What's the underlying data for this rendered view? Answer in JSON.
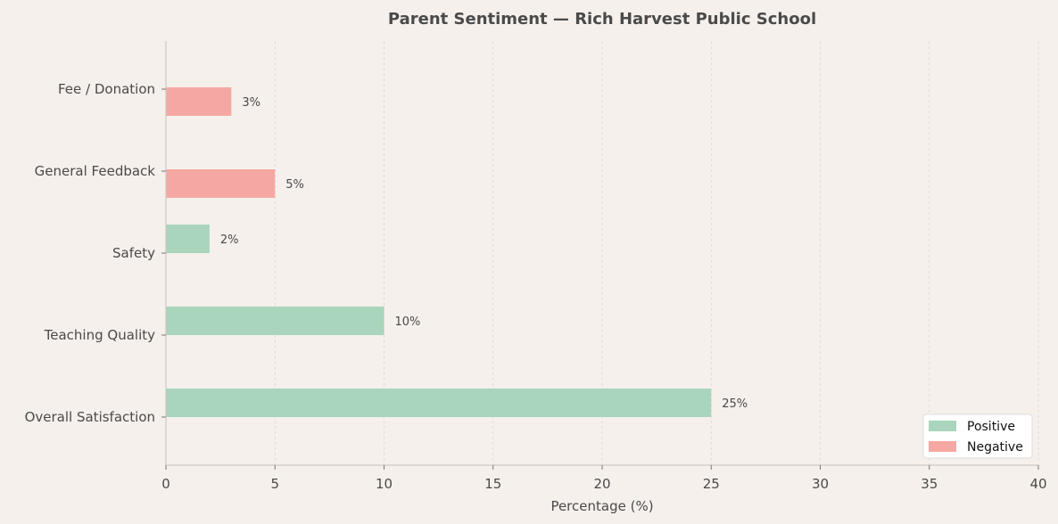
{
  "chart_data": {
    "type": "bar",
    "orientation": "horizontal",
    "title": "Parent Sentiment — Rich Harvest Public School",
    "xlabel": "Percentage (%)",
    "ylabel": "",
    "xlim": [
      0,
      40
    ],
    "xticks": [
      0,
      5,
      10,
      15,
      20,
      25,
      30,
      35,
      40
    ],
    "categories": [
      "Overall Satisfaction",
      "Teaching Quality",
      "Safety",
      "General Feedback",
      "Fee / Donation"
    ],
    "series": [
      {
        "name": "Positive",
        "color": "#a8d5bb",
        "values": [
          25,
          10,
          2,
          null,
          null
        ]
      },
      {
        "name": "Negative",
        "color": "#f5a8a3",
        "values": [
          null,
          null,
          null,
          5,
          3
        ]
      }
    ],
    "data_labels": [
      "25%",
      "10%",
      "2%",
      "5%",
      "3%"
    ],
    "grid": {
      "x": true,
      "y": false,
      "style": "dashed"
    },
    "legend_position": "bottom-right"
  }
}
